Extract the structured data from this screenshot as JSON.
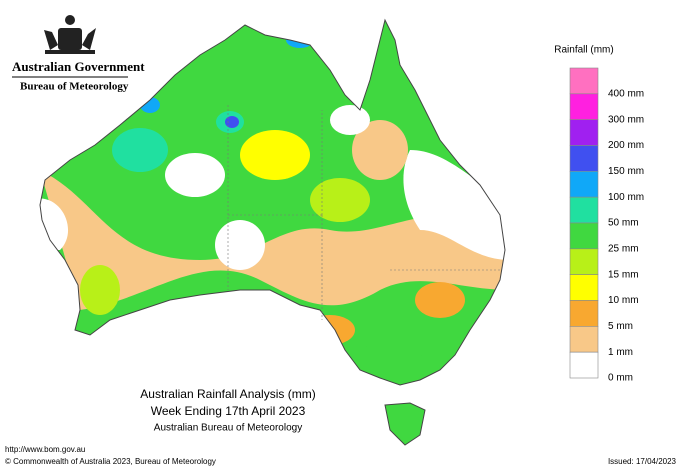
{
  "header": {
    "government": "Australian Government",
    "bureau": "Bureau of Meteorology"
  },
  "legend": {
    "title": "Rainfall (mm)",
    "items": [
      {
        "label": "400 mm",
        "color": "#ff70c0"
      },
      {
        "label": "300 mm",
        "color": "#ff20e0"
      },
      {
        "label": "200 mm",
        "color": "#a020f0"
      },
      {
        "label": "150 mm",
        "color": "#4050f0"
      },
      {
        "label": "100 mm",
        "color": "#10a8f8"
      },
      {
        "label": "50 mm",
        "color": "#20e0a0"
      },
      {
        "label": "25 mm",
        "color": "#40d840"
      },
      {
        "label": "15 mm",
        "color": "#b8f018"
      },
      {
        "label": "10 mm",
        "color": "#ffff00"
      },
      {
        "label": "5 mm",
        "color": "#f8a830"
      },
      {
        "label": "1 mm",
        "color": "#f8c888"
      },
      {
        "label": "0 mm",
        "color": "#ffffff"
      }
    ]
  },
  "map": {
    "title": "Australian Rainfall Analysis (mm)",
    "subtitle": "Week Ending 17th April 2023",
    "source": "Australian Bureau of Meteorology"
  },
  "footer": {
    "url": "http://www.bom.gov.au",
    "copyright": "© Commonwealth of Australia 2023, Bureau of Meteorology",
    "issued": "Issued: 17/04/2023"
  }
}
